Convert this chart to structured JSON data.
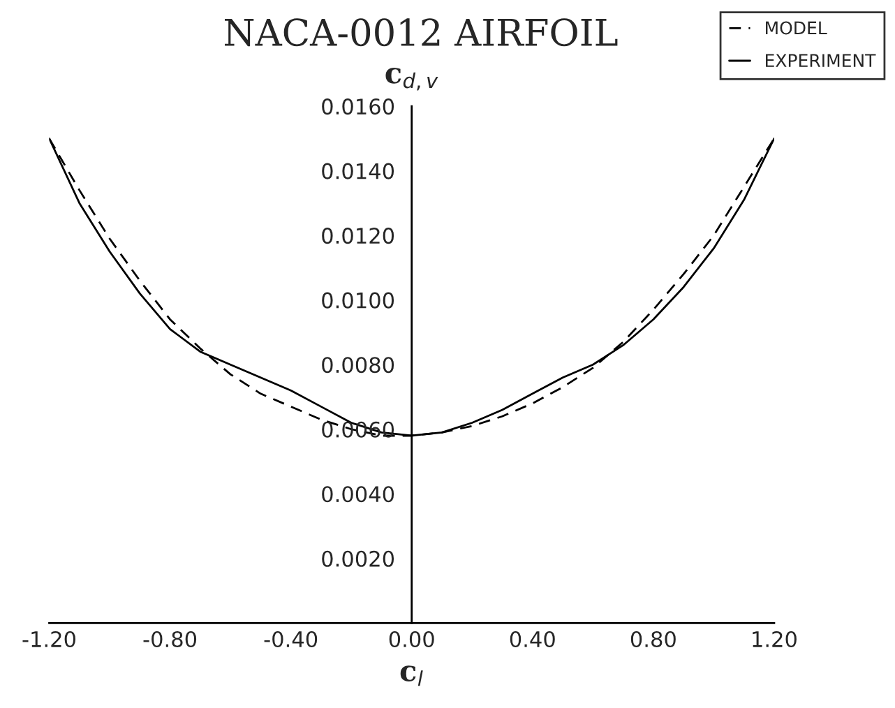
{
  "chart_data": {
    "type": "line",
    "title": "NACA-0012 AIRFOIL",
    "xlabel": "c$_{l}$",
    "ylabel": "c$_{d,v}$",
    "xlim": [
      -1.2,
      1.2
    ],
    "xticks": [
      {
        "value": -1.2,
        "label": "-1.20"
      },
      {
        "value": -0.8,
        "label": "-0.80"
      },
      {
        "value": -0.4,
        "label": "-0.40"
      },
      {
        "value": 0,
        "label": "0.00"
      },
      {
        "value": 0.4,
        "label": "0.40"
      },
      {
        "value": 0.8,
        "label": "0.80"
      },
      {
        "value": 1.2,
        "label": "1.20"
      }
    ],
    "ylim": [
      0,
      0.016
    ],
    "yticks": [
      {
        "value": 0.002,
        "label": "0.0020"
      },
      {
        "value": 0.004,
        "label": "0.0040"
      },
      {
        "value": 0.006,
        "label": "0.0060"
      },
      {
        "value": 0.008,
        "label": "0.0080"
      },
      {
        "value": 0.01,
        "label": "0.0100"
      },
      {
        "value": 0.012,
        "label": "0.0120"
      },
      {
        "value": 0.014,
        "label": "0.0140"
      },
      {
        "value": 0.016,
        "label": "0.0160"
      }
    ],
    "x": [
      -1.2,
      -1.1,
      -1.0,
      -0.9,
      -0.8,
      -0.7,
      -0.6,
      -0.5,
      -0.4,
      -0.3,
      -0.2,
      -0.1,
      0,
      0.1,
      0.2,
      0.3,
      0.4,
      0.5,
      0.6,
      0.7,
      0.8,
      0.9,
      1.0,
      1.1,
      1.2
    ],
    "series": [
      {
        "name": "MODEL",
        "color": "#000000",
        "line_style": "dashed",
        "values": [
          0.015,
          0.0134,
          0.0119,
          0.0106,
          0.0094,
          0.0085,
          0.0077,
          0.0071,
          0.0067,
          0.0063,
          0.006,
          0.0058,
          0.0058,
          0.0059,
          0.0061,
          0.0064,
          0.0068,
          0.0073,
          0.0079,
          0.0087,
          0.0097,
          0.0108,
          0.012,
          0.0135,
          0.015
        ]
      },
      {
        "name": "EXPERIMENT",
        "color": "#000000",
        "line_style": "solid",
        "values": [
          0.015,
          0.013,
          0.0115,
          0.0102,
          0.0091,
          0.0084,
          0.008,
          0.0076,
          0.0072,
          0.0067,
          0.0062,
          0.0059,
          0.0058,
          0.0059,
          0.0062,
          0.0066,
          0.0071,
          0.0076,
          0.008,
          0.0086,
          0.0094,
          0.0104,
          0.0116,
          0.0131,
          0.015
        ]
      }
    ],
    "legend": "top right",
    "grid": false,
    "marker": "none"
  }
}
